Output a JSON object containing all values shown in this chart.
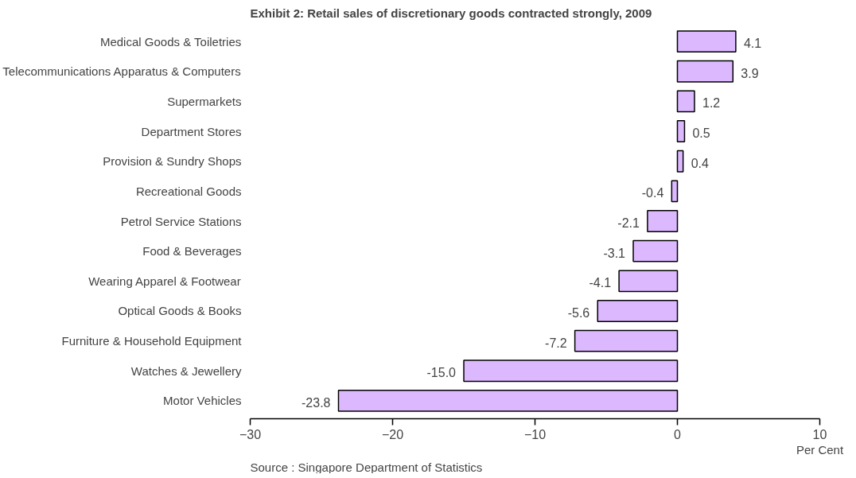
{
  "chart_data": {
    "type": "bar",
    "orientation": "horizontal",
    "title": "Exhibit 2: Retail sales of discretionary goods contracted strongly, 2009",
    "categories": [
      "Medical Goods & Toiletries",
      "Telecommunications Apparatus & Computers",
      "Supermarkets",
      "Department Stores",
      "Provision & Sundry Shops",
      "Recreational Goods",
      "Petrol Service Stations",
      "Food & Beverages",
      "Wearing Apparel & Footwear",
      "Optical Goods & Books",
      "Furniture & Household Equipment",
      "Watches & Jewellery",
      "Motor Vehicles"
    ],
    "values": [
      4.1,
      3.9,
      1.2,
      0.5,
      0.4,
      -0.4,
      -2.1,
      -3.1,
      -4.1,
      -5.6,
      -7.2,
      -15.0,
      -23.8
    ],
    "value_labels": [
      "4.1",
      "3.9",
      "1.2",
      "0.5",
      "0.4",
      "-0.4",
      "-2.1",
      "-3.1",
      "-4.1",
      "-5.6",
      "-7.2",
      "-15.0",
      "-23.8"
    ],
    "color": "#dcb9ff",
    "xlim": [
      -30,
      10
    ],
    "xticks": [
      -30,
      -20,
      -10,
      0,
      10
    ],
    "xlabel": "Per Cent",
    "grid": false,
    "annotations": [
      "Source : Singapore Department of Statistics"
    ]
  }
}
